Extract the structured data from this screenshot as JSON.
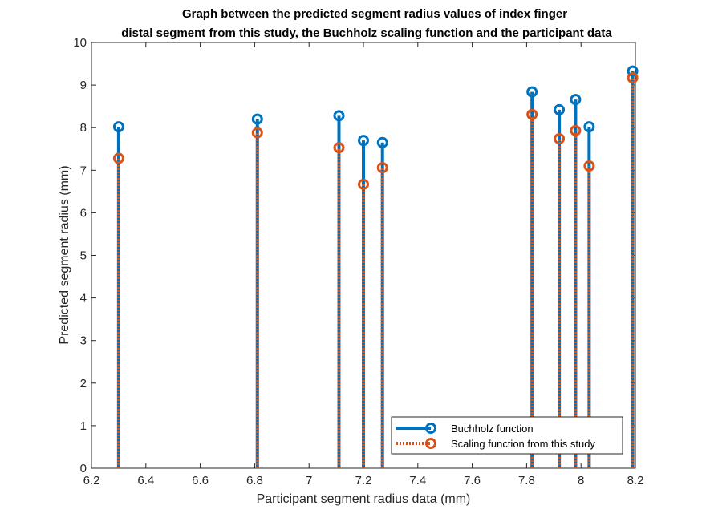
{
  "chart_data": {
    "type": "stem",
    "title_lines": [
      "Graph between the predicted segment radius values of index finger",
      "distal segment from this study, the Buchholz scaling function and the participant data"
    ],
    "xlabel": "Participant segment radius data (mm)",
    "ylabel": "Predicted segment radius (mm)",
    "xlim": [
      6.2,
      8.2
    ],
    "ylim": [
      0,
      10
    ],
    "xticks": [
      6.2,
      6.4,
      6.6,
      6.8,
      7,
      7.2,
      7.4,
      7.6,
      7.8,
      8,
      8.2
    ],
    "yticks": [
      0,
      1,
      2,
      3,
      4,
      5,
      6,
      7,
      8,
      9,
      10
    ],
    "legend_position": "bottom-right",
    "grid": false,
    "x": [
      6.3,
      6.81,
      7.11,
      7.2,
      7.27,
      7.82,
      7.92,
      7.98,
      8.03,
      8.19
    ],
    "series": [
      {
        "name": "Buchholz function",
        "color": "#0072BD",
        "line_style": "solid",
        "marker": "circle",
        "values": [
          8.02,
          8.2,
          8.28,
          7.7,
          7.65,
          8.84,
          8.42,
          8.66,
          8.02,
          9.33
        ]
      },
      {
        "name": "Scaling function from this study",
        "color": "#D95319",
        "line_style": "dotted",
        "marker": "circle",
        "values": [
          7.28,
          7.88,
          7.53,
          6.67,
          7.06,
          8.31,
          7.74,
          7.93,
          7.1,
          9.17
        ]
      }
    ]
  }
}
